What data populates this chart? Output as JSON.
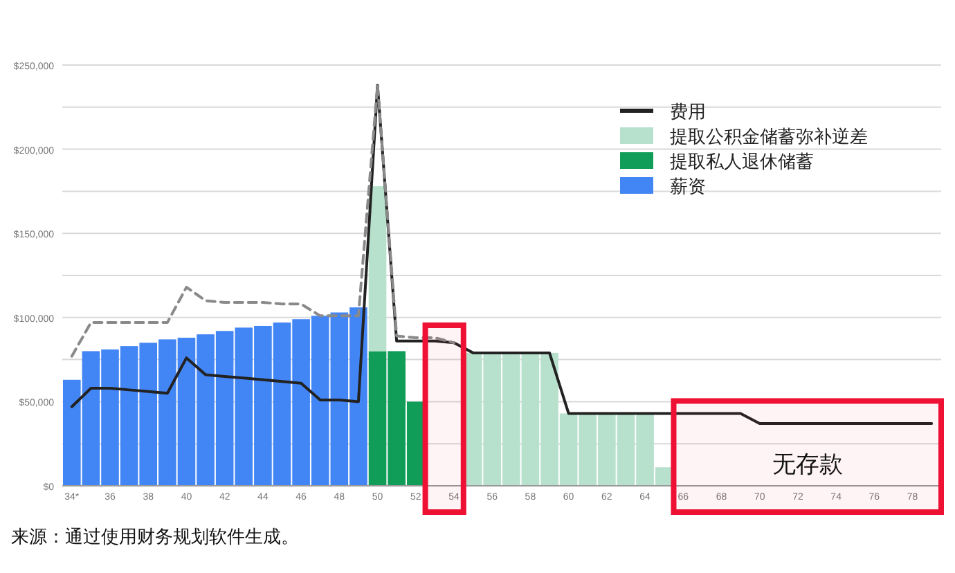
{
  "chart_data": {
    "type": "bar",
    "stacked": true,
    "x": [
      34,
      35,
      36,
      37,
      38,
      39,
      40,
      41,
      42,
      43,
      44,
      45,
      46,
      47,
      48,
      49,
      50,
      51,
      52,
      53,
      54,
      55,
      56,
      57,
      58,
      59,
      60,
      61,
      62,
      63,
      64,
      65,
      66,
      67,
      68,
      69,
      70,
      71,
      72,
      73,
      74,
      75,
      76,
      77,
      78,
      79
    ],
    "xlim": [
      33.5,
      79.5
    ],
    "xticks": [
      {
        "value": 34,
        "label": "34*"
      },
      36,
      38,
      40,
      42,
      44,
      46,
      48,
      50,
      52,
      54,
      56,
      58,
      60,
      62,
      64,
      66,
      68,
      70,
      72,
      74,
      76,
      78
    ],
    "ylim": [
      0,
      250000
    ],
    "yticks": [
      {
        "value": 0,
        "label": "$0"
      },
      {
        "value": 25000,
        "label": null
      },
      {
        "value": 50000,
        "label": "$50,000"
      },
      {
        "value": 75000,
        "label": null
      },
      {
        "value": 100000,
        "label": "$100,000"
      },
      {
        "value": 125000,
        "label": null
      },
      {
        "value": 150000,
        "label": "$150,000"
      },
      {
        "value": 175000,
        "label": null
      },
      {
        "value": 200000,
        "label": "$200,000"
      },
      {
        "value": 225000,
        "label": null
      },
      {
        "value": 250000,
        "label": "$250,000"
      }
    ],
    "grid": "y",
    "legend": "top right",
    "series": [
      {
        "name": "薪资",
        "color": "#4285f4",
        "values": [
          63000,
          80000,
          81000,
          83000,
          85000,
          87000,
          88000,
          90000,
          92000,
          94000,
          95000,
          97000,
          99000,
          101000,
          103000,
          106000,
          null,
          null,
          null,
          null,
          null,
          null,
          null,
          null,
          null,
          null,
          null,
          null,
          null,
          null,
          null,
          null,
          null,
          null,
          null,
          null,
          null,
          null,
          null,
          null,
          null,
          null,
          null,
          null,
          null,
          null
        ]
      },
      {
        "name": "提取私人退休储蓄",
        "color": "#0f9d58",
        "values": [
          null,
          null,
          null,
          null,
          null,
          null,
          null,
          null,
          null,
          null,
          null,
          null,
          null,
          null,
          null,
          null,
          80000,
          80000,
          50000,
          null,
          null,
          null,
          null,
          null,
          null,
          null,
          null,
          null,
          null,
          null,
          null,
          null,
          null,
          null,
          null,
          null,
          null,
          null,
          null,
          null,
          null,
          null,
          null,
          null,
          null,
          null
        ]
      },
      {
        "name": "提取公积金储蓄弥补逆差",
        "color": "#b7e1cd",
        "values": [
          null,
          null,
          null,
          null,
          null,
          null,
          null,
          null,
          null,
          null,
          null,
          null,
          null,
          null,
          null,
          null,
          98000,
          null,
          null,
          null,
          null,
          79000,
          79000,
          79000,
          79000,
          79000,
          43000,
          43000,
          43000,
          43000,
          43000,
          11000,
          null,
          null,
          null,
          null,
          null,
          null,
          null,
          null,
          null,
          null,
          null,
          null,
          null,
          null
        ]
      },
      {
        "name": "费用",
        "type": "line",
        "color": "#222222",
        "line_style": "solid",
        "values": [
          47000,
          58000,
          58000,
          57000,
          56000,
          55000,
          76000,
          66000,
          65000,
          64000,
          63000,
          62000,
          61000,
          51000,
          51000,
          50000,
          238000,
          86000,
          86000,
          86000,
          85000,
          79000,
          79000,
          79000,
          79000,
          79000,
          43000,
          43000,
          43000,
          43000,
          43000,
          43000,
          43000,
          43000,
          43000,
          43000,
          37000,
          37000,
          37000,
          37000,
          37000,
          37000,
          37000,
          37000,
          37000,
          37000
        ]
      },
      {
        "type": "line",
        "color": "#8a8a8a",
        "line_style": "dashed",
        "values": [
          77000,
          97000,
          97000,
          97000,
          97000,
          97000,
          118000,
          110000,
          109000,
          109000,
          109000,
          108000,
          108000,
          101000,
          101000,
          101000,
          238000,
          89000,
          88000,
          88000,
          85000,
          null,
          null,
          null,
          null,
          null,
          null,
          null,
          null,
          null,
          null,
          null,
          null,
          null,
          null,
          null,
          null,
          null,
          null,
          null,
          null,
          null,
          null,
          null,
          null,
          null
        ]
      }
    ],
    "bands": [
      {
        "axis": "x",
        "from": 52.5,
        "to": 54.5,
        "color": "#ee1133"
      },
      {
        "axis": "x",
        "from": 65.5,
        "to": 79.5,
        "label": "无存款",
        "color": "#ee1133"
      }
    ],
    "annotations": [
      "来源：通过使用财务规划软件生成。"
    ]
  }
}
